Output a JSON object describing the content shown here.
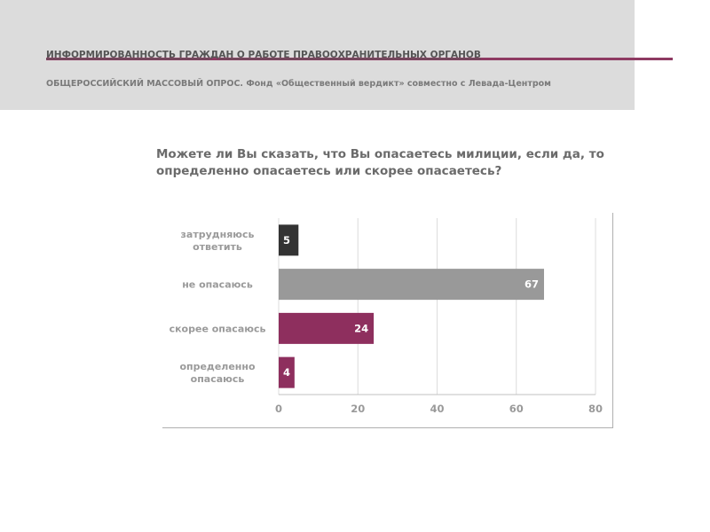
{
  "header": {
    "title": "ИНФОРМИРОВАННОСТЬ ГРАЖДАН О РАБОТЕ ПРАВООХРАНИТЕЛЬНЫХ ОРГАНОВ",
    "subtitle": "ОБЩЕРОССИЙСКИЙ МАССОВЫЙ ОПРОС. Фонд «Общественный вердикт» совместно с Левада-Центром",
    "accent_color": "#8e3a62"
  },
  "question": "Можете ли Вы сказать, что Вы опасаетесь милиции, если да, то определенно опасаетесь или скорее опасаетесь?",
  "chart_data": {
    "type": "bar",
    "orientation": "horizontal",
    "categories": [
      "затрудняюсь ответить",
      "не опасаюсь",
      "скорее опасаюсь",
      "определенно опасаюсь"
    ],
    "values": [
      5,
      67,
      24,
      4
    ],
    "colors": [
      "#333333",
      "#999999",
      "#8e2f5e",
      "#8e2f5e"
    ],
    "xlim": [
      0,
      80
    ],
    "xticks": [
      0,
      20,
      40,
      60,
      80
    ],
    "grid": true,
    "legend": "none",
    "data_labels": true
  }
}
